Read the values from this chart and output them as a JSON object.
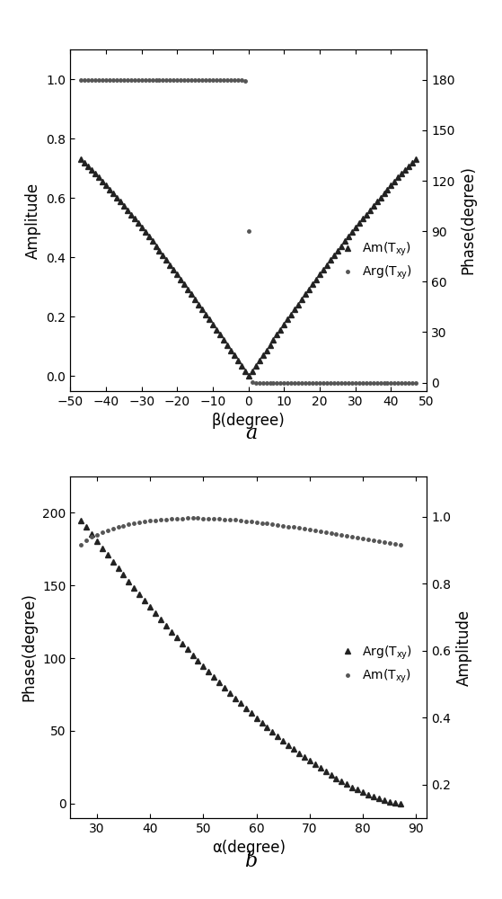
{
  "plot_a": {
    "xlabel": "β(degree)",
    "ylabel_left": "Amplitude",
    "ylabel_right": "Phase(degree)",
    "xlim": [
      -50,
      50
    ],
    "xticks": [
      -50,
      -40,
      -30,
      -20,
      -10,
      0,
      10,
      20,
      30,
      40,
      50
    ],
    "ylim_left": [
      -0.05,
      1.1
    ],
    "yticks_left": [
      0.0,
      0.2,
      0.4,
      0.6,
      0.8,
      1.0
    ],
    "ylim_right": [
      -5,
      198
    ],
    "yticks_right": [
      0,
      30,
      60,
      90,
      120,
      150,
      180
    ],
    "label_a": "a"
  },
  "plot_b": {
    "xlabel": "α(degree)",
    "ylabel_left": "Phase(degree)",
    "ylabel_right": "Amplitude",
    "xlim": [
      25,
      92
    ],
    "xticks": [
      30,
      40,
      50,
      60,
      70,
      80,
      90
    ],
    "ylim_left": [
      -10,
      225
    ],
    "yticks_left": [
      0,
      50,
      100,
      150,
      200
    ],
    "ylim_right": [
      0.1,
      1.12
    ],
    "yticks_right": [
      0.2,
      0.4,
      0.6,
      0.8,
      1.0
    ],
    "label_b": "b"
  }
}
